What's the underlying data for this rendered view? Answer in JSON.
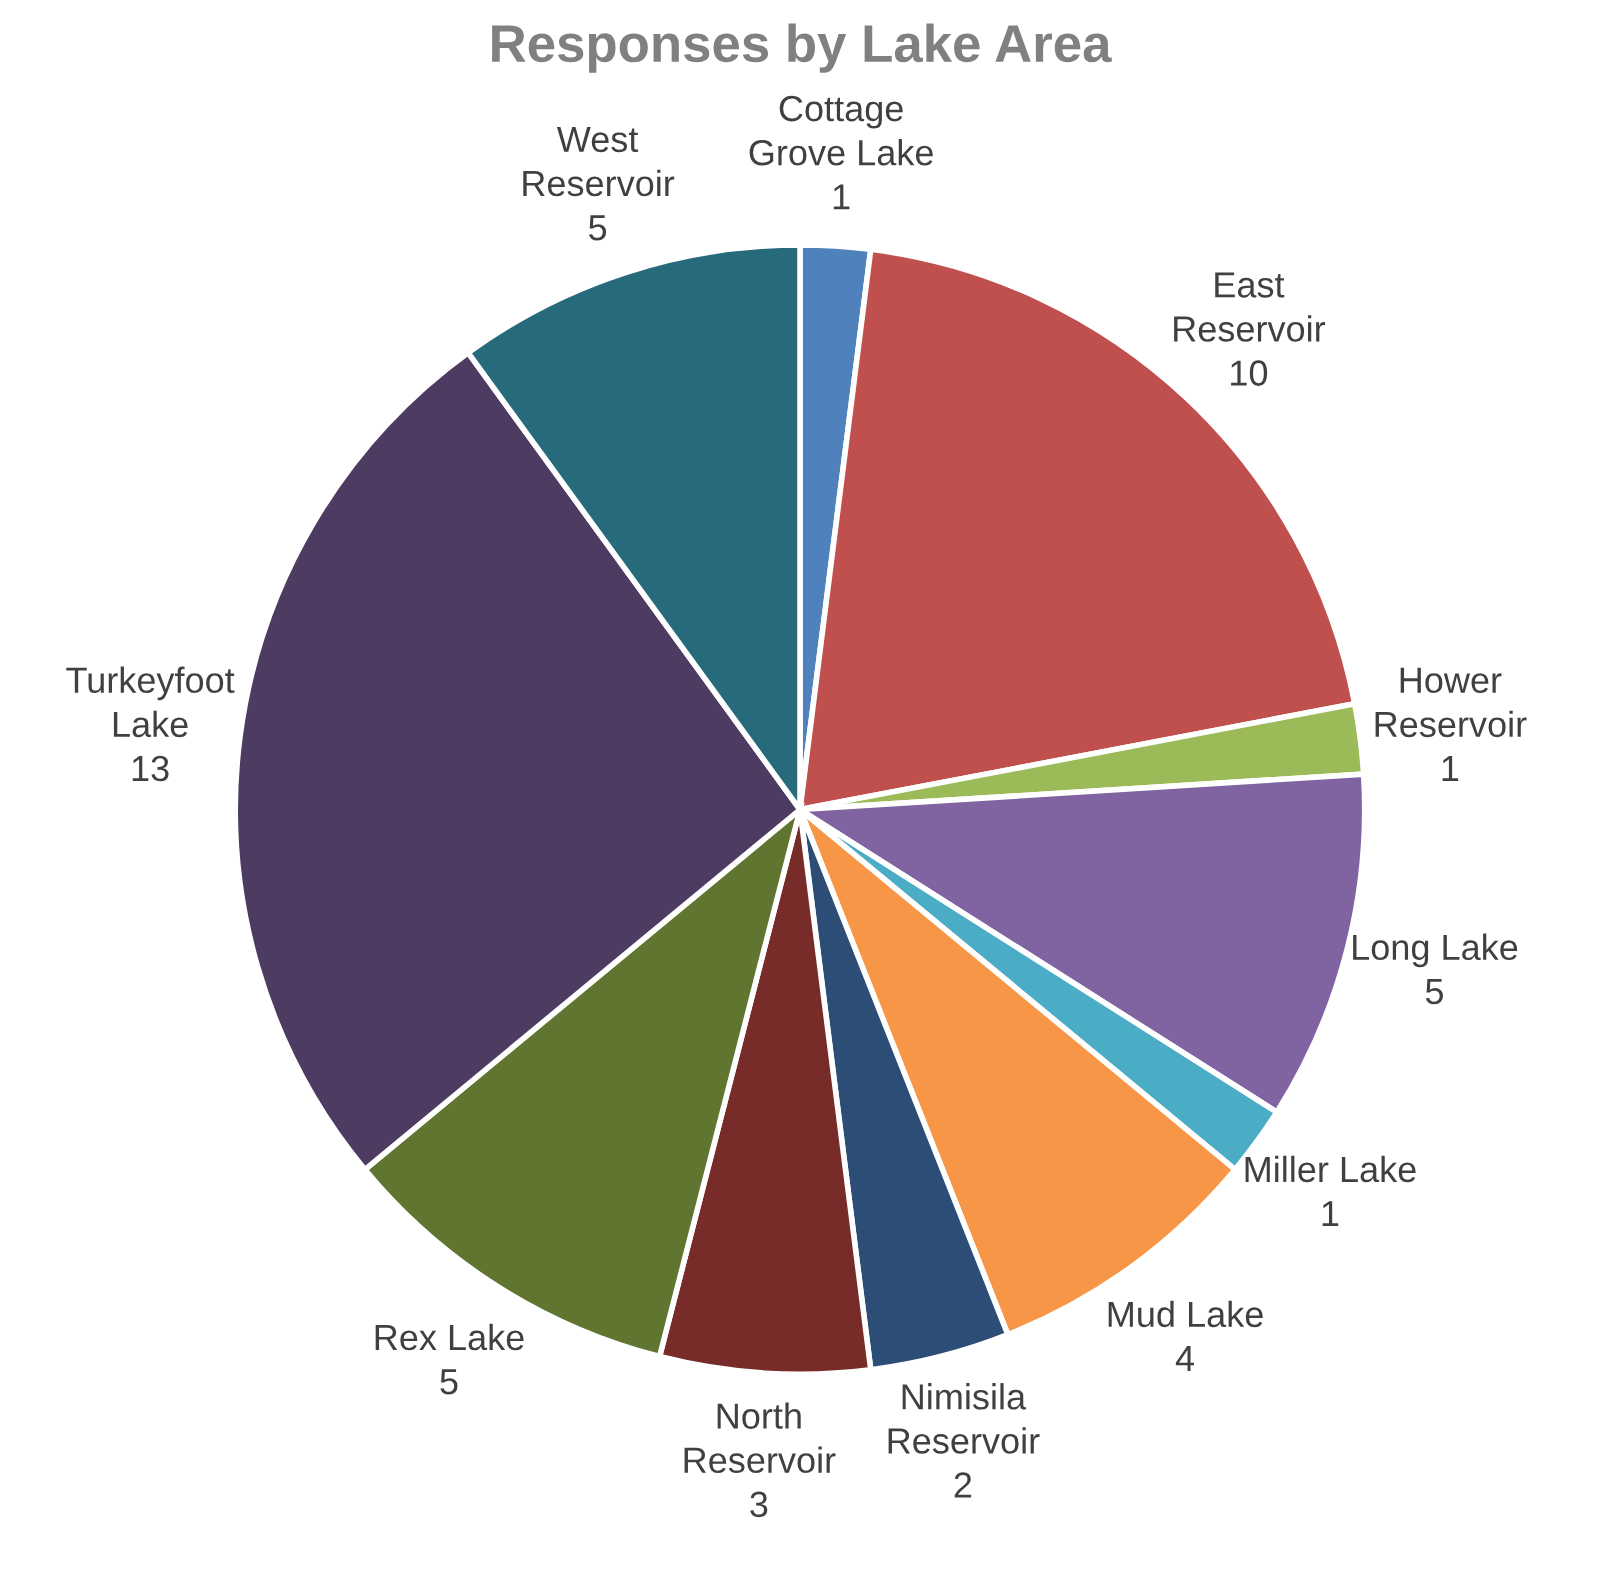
{
  "chart_data": {
    "type": "pie",
    "title": "Responses by Lake Area",
    "categories": [
      "Cottage\nGrove Lake",
      "East\nReservoir",
      "Hower\nReservoir",
      "Long Lake",
      "Miller Lake",
      "Mud Lake",
      "Nimisila\nReservoir",
      "North\nReservoir",
      "Rex Lake",
      "Turkeyfoot\nLake",
      "West\nReservoir"
    ],
    "values": [
      1,
      10,
      1,
      5,
      1,
      4,
      2,
      3,
      5,
      13,
      5
    ],
    "colors": [
      "#4f81bd",
      "#c0504d",
      "#9bbb59",
      "#8064a2",
      "#4bacc6",
      "#f79646",
      "#2c4d75",
      "#772c2a",
      "#5f7530",
      "#4d3b62",
      "#276a7c"
    ],
    "data_labels": true,
    "legend": false
  }
}
